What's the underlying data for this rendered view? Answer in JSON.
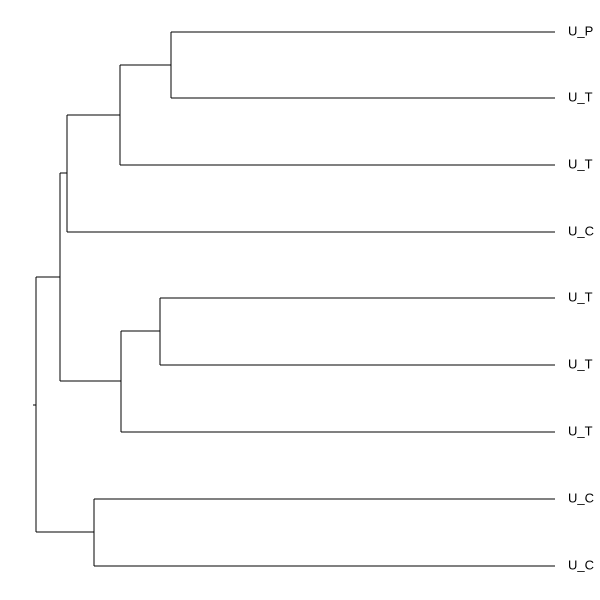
{
  "leaves": [
    "U_P",
    "U_T",
    "U_T",
    "U_C",
    "U_T",
    "U_T",
    "U_T",
    "U_C",
    "U_C"
  ]
}
